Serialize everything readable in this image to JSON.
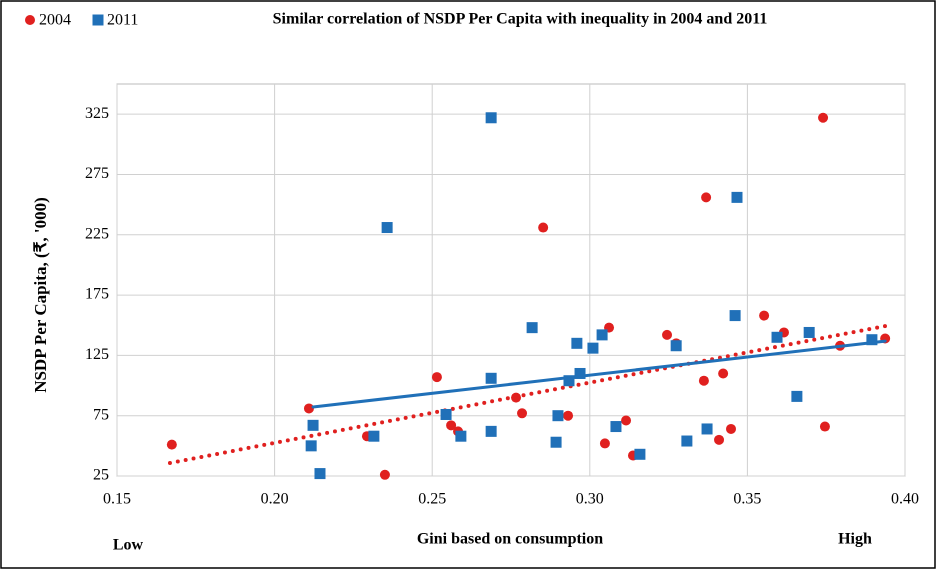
{
  "chart_data": {
    "type": "scatter",
    "title": "Similar correlation of NSDP Per Capita with inequality in 2004 and 2011",
    "x_label": "Gini based on consumption",
    "y_label": "NSDP Per Capita,  (₹, '000)",
    "annotations": [
      "Low",
      "High"
    ],
    "xlim": [
      0.15,
      0.4
    ],
    "xticks": [
      0.15,
      {
        "value": 0.2,
        "label": "0.20"
      },
      0.25,
      {
        "value": 0.3,
        "label": "0.30"
      },
      0.35,
      {
        "value": 0.4,
        "label": "0.40"
      }
    ],
    "ylim": [
      25,
      350
    ],
    "yticks": [
      25,
      75,
      125,
      175,
      225,
      275,
      325
    ],
    "grid": true,
    "legend": "top-left",
    "series": [
      {
        "name": "2004",
        "color": "#e0201f",
        "marker": "circle",
        "x": [
          0.1674,
          0.2109,
          0.2293,
          0.235,
          0.2515,
          0.256,
          0.2582,
          0.2766,
          0.2785,
          0.2852,
          0.2931,
          0.3048,
          0.3061,
          0.3115,
          0.3137,
          0.3245,
          0.3274,
          0.3369,
          0.3362,
          0.3423,
          0.341,
          0.3448,
          0.3553,
          0.3616,
          0.374,
          0.3746,
          0.3794,
          0.3937
        ],
        "values": [
          51,
          81,
          58,
          26,
          107,
          67,
          62,
          90,
          77,
          231,
          75,
          52,
          148,
          71,
          42,
          142,
          135,
          256,
          104,
          110,
          55,
          64,
          158,
          144,
          322,
          66,
          133,
          139
        ],
        "trend": {
          "x": [
            0.1668,
            0.3937
          ],
          "values": [
            35.8,
            149.3
          ]
        }
      },
      {
        "name": "2011",
        "color": "#2070b8",
        "marker": "square",
        "x": [
          0.2122,
          0.2116,
          0.2144,
          0.2315,
          0.2357,
          0.2544,
          0.2591,
          0.2687,
          0.2687,
          0.2687,
          0.2817,
          0.2899,
          0.2893,
          0.2959,
          0.2969,
          0.2934,
          0.301,
          0.3039,
          0.3083,
          0.3159,
          0.3274,
          0.3308,
          0.3372,
          0.3461,
          0.3467,
          0.3594,
          0.3657,
          0.3696,
          0.3895
        ],
        "values": [
          67,
          50,
          27,
          58,
          231,
          76,
          58,
          62,
          106,
          322,
          148,
          75,
          53,
          135,
          110,
          104,
          131,
          142,
          66,
          43,
          133,
          54,
          64,
          158,
          256,
          140,
          91,
          144,
          138
        ],
        "trend": {
          "x": [
            0.2122,
            0.3937
          ],
          "values": [
            82.2,
            136.8
          ]
        }
      }
    ]
  }
}
